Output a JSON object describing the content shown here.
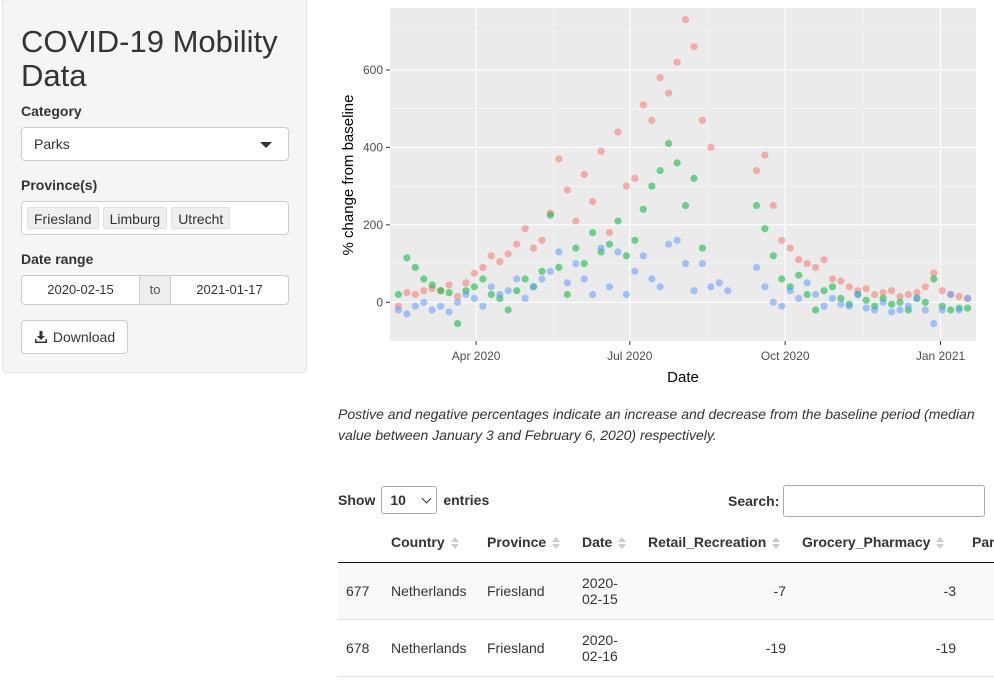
{
  "sidebar": {
    "title": "COVID-19 Mobility Data",
    "category_label": "Category",
    "category_value": "Parks",
    "province_label": "Province(s)",
    "provinces": [
      "Friesland",
      "Limburg",
      "Utrecht"
    ],
    "date_label": "Date range",
    "date_start": "2020-02-15",
    "date_sep": "to",
    "date_end": "2021-01-17",
    "download_label": "Download"
  },
  "chart_data": {
    "type": "scatter",
    "xlabel": "Date",
    "ylabel": "% change from baseline",
    "x_ticks": [
      "Apr 2020",
      "Jul 2020",
      "Oct 2020",
      "Jan 2021"
    ],
    "y_ticks": [
      0,
      200,
      400,
      600
    ],
    "ylim": [
      -100,
      760
    ],
    "xlim": [
      "2020-02-10",
      "2021-01-22"
    ],
    "grid": true,
    "legend": "none",
    "colors": [
      "#F8766D",
      "#00BA38",
      "#619CFF"
    ],
    "series": [
      {
        "color": "#F8766D",
        "points": [
          [
            "2020-02-15",
            -10
          ],
          [
            "2020-02-20",
            25
          ],
          [
            "2020-02-25",
            20
          ],
          [
            "2020-03-01",
            30
          ],
          [
            "2020-03-06",
            35
          ],
          [
            "2020-03-11",
            30
          ],
          [
            "2020-03-16",
            45
          ],
          [
            "2020-03-21",
            15
          ],
          [
            "2020-03-26",
            50
          ],
          [
            "2020-03-31",
            75
          ],
          [
            "2020-04-05",
            90
          ],
          [
            "2020-04-10",
            120
          ],
          [
            "2020-04-15",
            105
          ],
          [
            "2020-04-20",
            125
          ],
          [
            "2020-04-25",
            150
          ],
          [
            "2020-04-30",
            190
          ],
          [
            "2020-05-05",
            140
          ],
          [
            "2020-05-10",
            160
          ],
          [
            "2020-05-15",
            230
          ],
          [
            "2020-05-20",
            370
          ],
          [
            "2020-05-25",
            290
          ],
          [
            "2020-05-30",
            210
          ],
          [
            "2020-06-04",
            330
          ],
          [
            "2020-06-09",
            260
          ],
          [
            "2020-06-14",
            390
          ],
          [
            "2020-06-19",
            180
          ],
          [
            "2020-06-24",
            440
          ],
          [
            "2020-06-29",
            300
          ],
          [
            "2020-07-04",
            320
          ],
          [
            "2020-07-09",
            510
          ],
          [
            "2020-07-14",
            470
          ],
          [
            "2020-07-19",
            580
          ],
          [
            "2020-07-24",
            540
          ],
          [
            "2020-07-29",
            620
          ],
          [
            "2020-08-03",
            730
          ],
          [
            "2020-08-08",
            660
          ],
          [
            "2020-08-13",
            470
          ],
          [
            "2020-08-18",
            400
          ],
          [
            "2020-09-14",
            340
          ],
          [
            "2020-09-19",
            380
          ],
          [
            "2020-09-24",
            250
          ],
          [
            "2020-09-29",
            160
          ],
          [
            "2020-10-04",
            140
          ],
          [
            "2020-10-09",
            110
          ],
          [
            "2020-10-14",
            100
          ],
          [
            "2020-10-19",
            90
          ],
          [
            "2020-10-24",
            110
          ],
          [
            "2020-10-29",
            60
          ],
          [
            "2020-11-03",
            55
          ],
          [
            "2020-11-08",
            40
          ],
          [
            "2020-11-13",
            30
          ],
          [
            "2020-11-18",
            35
          ],
          [
            "2020-11-23",
            20
          ],
          [
            "2020-11-28",
            25
          ],
          [
            "2020-12-03",
            30
          ],
          [
            "2020-12-08",
            15
          ],
          [
            "2020-12-13",
            20
          ],
          [
            "2020-12-18",
            25
          ],
          [
            "2020-12-23",
            40
          ],
          [
            "2020-12-28",
            75
          ],
          [
            "2021-01-02",
            30
          ],
          [
            "2021-01-07",
            20
          ],
          [
            "2021-01-12",
            15
          ],
          [
            "2021-01-17",
            10
          ]
        ]
      },
      {
        "color": "#00BA38",
        "points": [
          [
            "2020-02-15",
            20
          ],
          [
            "2020-02-20",
            115
          ],
          [
            "2020-02-25",
            90
          ],
          [
            "2020-03-01",
            60
          ],
          [
            "2020-03-06",
            45
          ],
          [
            "2020-03-11",
            30
          ],
          [
            "2020-03-16",
            25
          ],
          [
            "2020-03-21",
            -55
          ],
          [
            "2020-03-26",
            30
          ],
          [
            "2020-03-31",
            40
          ],
          [
            "2020-04-05",
            60
          ],
          [
            "2020-04-10",
            20
          ],
          [
            "2020-04-15",
            10
          ],
          [
            "2020-04-20",
            -20
          ],
          [
            "2020-04-25",
            30
          ],
          [
            "2020-04-30",
            60
          ],
          [
            "2020-05-05",
            40
          ],
          [
            "2020-05-10",
            80
          ],
          [
            "2020-05-15",
            225
          ],
          [
            "2020-05-20",
            90
          ],
          [
            "2020-05-25",
            20
          ],
          [
            "2020-05-30",
            140
          ],
          [
            "2020-06-04",
            100
          ],
          [
            "2020-06-09",
            180
          ],
          [
            "2020-06-14",
            130
          ],
          [
            "2020-06-19",
            150
          ],
          [
            "2020-06-24",
            210
          ],
          [
            "2020-06-29",
            120
          ],
          [
            "2020-07-04",
            160
          ],
          [
            "2020-07-09",
            240
          ],
          [
            "2020-07-14",
            300
          ],
          [
            "2020-07-19",
            340
          ],
          [
            "2020-07-24",
            410
          ],
          [
            "2020-07-29",
            360
          ],
          [
            "2020-08-03",
            250
          ],
          [
            "2020-08-08",
            320
          ],
          [
            "2020-08-13",
            140
          ],
          [
            "2020-09-14",
            250
          ],
          [
            "2020-09-19",
            190
          ],
          [
            "2020-09-24",
            120
          ],
          [
            "2020-09-29",
            60
          ],
          [
            "2020-10-04",
            40
          ],
          [
            "2020-10-09",
            70
          ],
          [
            "2020-10-14",
            20
          ],
          [
            "2020-10-19",
            -20
          ],
          [
            "2020-10-24",
            30
          ],
          [
            "2020-10-29",
            40
          ],
          [
            "2020-11-03",
            10
          ],
          [
            "2020-11-08",
            -5
          ],
          [
            "2020-11-13",
            20
          ],
          [
            "2020-11-18",
            5
          ],
          [
            "2020-11-23",
            -10
          ],
          [
            "2020-11-28",
            10
          ],
          [
            "2020-12-03",
            -5
          ],
          [
            "2020-12-08",
            0
          ],
          [
            "2020-12-13",
            -20
          ],
          [
            "2020-12-18",
            10
          ],
          [
            "2020-12-23",
            0
          ],
          [
            "2020-12-28",
            60
          ],
          [
            "2021-01-02",
            -10
          ],
          [
            "2021-01-07",
            -20
          ],
          [
            "2021-01-12",
            -15
          ],
          [
            "2021-01-17",
            -15
          ]
        ]
      },
      {
        "color": "#619CFF",
        "points": [
          [
            "2020-02-15",
            -20
          ],
          [
            "2020-02-20",
            -30
          ],
          [
            "2020-02-25",
            -10
          ],
          [
            "2020-03-01",
            0
          ],
          [
            "2020-03-06",
            -20
          ],
          [
            "2020-03-11",
            -10
          ],
          [
            "2020-03-16",
            -25
          ],
          [
            "2020-03-21",
            0
          ],
          [
            "2020-03-26",
            20
          ],
          [
            "2020-03-31",
            10
          ],
          [
            "2020-04-05",
            -10
          ],
          [
            "2020-04-10",
            40
          ],
          [
            "2020-04-15",
            20
          ],
          [
            "2020-04-20",
            30
          ],
          [
            "2020-04-25",
            60
          ],
          [
            "2020-04-30",
            10
          ],
          [
            "2020-05-05",
            40
          ],
          [
            "2020-05-10",
            60
          ],
          [
            "2020-05-15",
            80
          ],
          [
            "2020-05-20",
            130
          ],
          [
            "2020-05-25",
            50
          ],
          [
            "2020-05-30",
            100
          ],
          [
            "2020-06-04",
            60
          ],
          [
            "2020-06-09",
            20
          ],
          [
            "2020-06-14",
            140
          ],
          [
            "2020-06-19",
            40
          ],
          [
            "2020-06-24",
            130
          ],
          [
            "2020-06-29",
            20
          ],
          [
            "2020-07-04",
            80
          ],
          [
            "2020-07-09",
            120
          ],
          [
            "2020-07-14",
            60
          ],
          [
            "2020-07-19",
            40
          ],
          [
            "2020-07-24",
            150
          ],
          [
            "2020-07-29",
            160
          ],
          [
            "2020-08-03",
            100
          ],
          [
            "2020-08-08",
            30
          ],
          [
            "2020-08-13",
            100
          ],
          [
            "2020-08-18",
            40
          ],
          [
            "2020-08-23",
            50
          ],
          [
            "2020-08-28",
            30
          ],
          [
            "2020-09-14",
            90
          ],
          [
            "2020-09-19",
            40
          ],
          [
            "2020-09-24",
            0
          ],
          [
            "2020-09-29",
            -10
          ],
          [
            "2020-10-04",
            30
          ],
          [
            "2020-10-09",
            10
          ],
          [
            "2020-10-14",
            50
          ],
          [
            "2020-10-19",
            20
          ],
          [
            "2020-10-24",
            -10
          ],
          [
            "2020-10-29",
            10
          ],
          [
            "2020-11-03",
            -5
          ],
          [
            "2020-11-08",
            -10
          ],
          [
            "2020-11-13",
            20
          ],
          [
            "2020-11-18",
            -15
          ],
          [
            "2020-11-23",
            -20
          ],
          [
            "2020-11-28",
            0
          ],
          [
            "2020-12-03",
            -25
          ],
          [
            "2020-12-08",
            -20
          ],
          [
            "2020-12-13",
            -10
          ],
          [
            "2020-12-18",
            10
          ],
          [
            "2020-12-23",
            -20
          ],
          [
            "2020-12-28",
            -55
          ],
          [
            "2021-01-02",
            -20
          ],
          [
            "2021-01-07",
            20
          ],
          [
            "2021-01-12",
            -20
          ],
          [
            "2021-01-17",
            10
          ]
        ]
      }
    ]
  },
  "caption": "Postive and negative percentages indicate an increase and decrease from the baseline period (median value between January 3 and February 6, 2020) respectively.",
  "table_controls": {
    "show_label": "Show",
    "page_length": "10",
    "entries_label": "entries",
    "search_label": "Search:"
  },
  "table": {
    "columns": [
      "",
      "Country",
      "Province",
      "Date",
      "Retail_Recreation",
      "Grocery_Pharmacy",
      "Par"
    ],
    "rows": [
      [
        "677",
        "Netherlands",
        "Friesland",
        "2020-02-15",
        "-7",
        "-3",
        ""
      ],
      [
        "678",
        "Netherlands",
        "Friesland",
        "2020-02-16",
        "-19",
        "-19",
        ""
      ]
    ]
  }
}
